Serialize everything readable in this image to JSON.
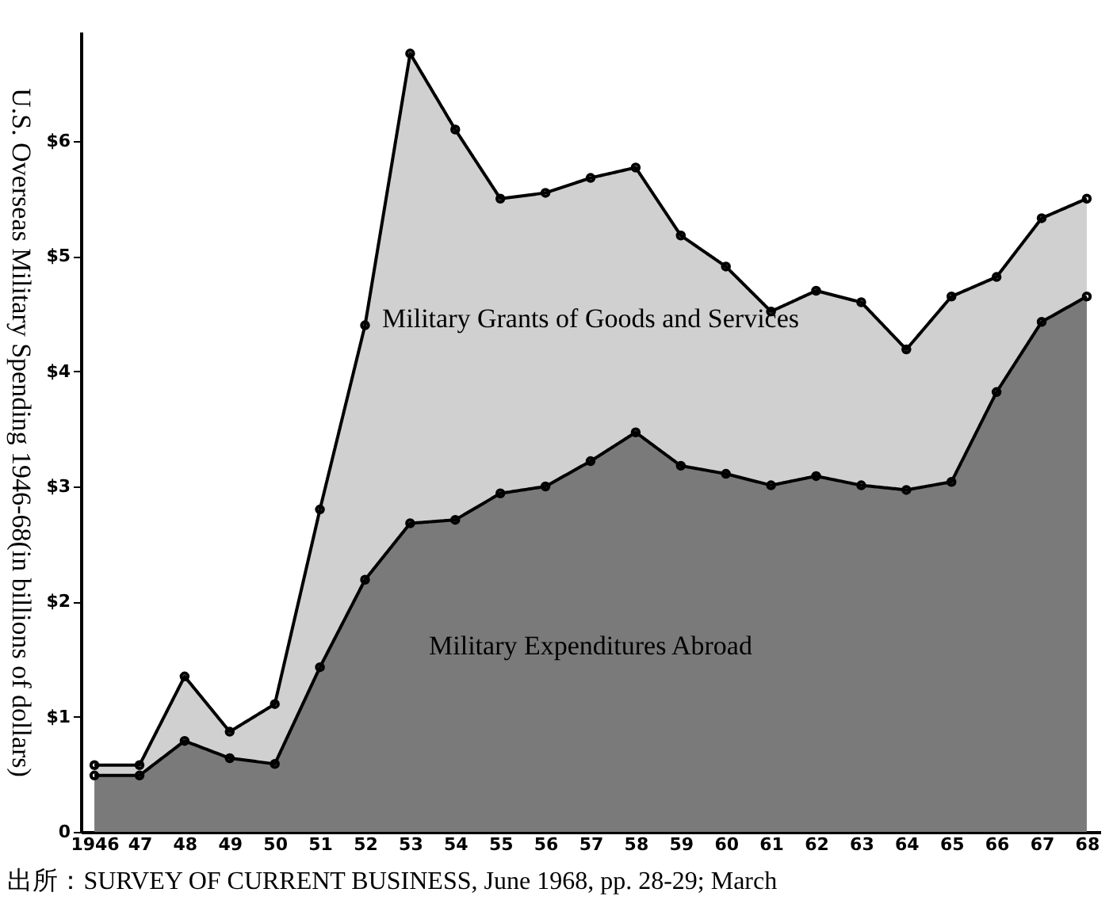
{
  "chart_data": {
    "type": "area",
    "stacked": true,
    "ylabel": "U.S. Overseas Military Spending 1946-68(in billions of dollars)",
    "categories": [
      "1946",
      "47",
      "48",
      "49",
      "50",
      "51",
      "52",
      "53",
      "54",
      "55",
      "56",
      "57",
      "58",
      "59",
      "60",
      "61",
      "62",
      "63",
      "64",
      "65",
      "66",
      "67",
      "68"
    ],
    "series": [
      {
        "name": "Military Expenditures Abroad",
        "color": "#7a7a7a",
        "values": [
          0.49,
          0.49,
          0.79,
          0.64,
          0.59,
          1.43,
          2.19,
          2.68,
          2.71,
          2.94,
          3.0,
          3.22,
          3.47,
          3.18,
          3.11,
          3.01,
          3.09,
          3.01,
          2.97,
          3.04,
          3.82,
          4.43,
          4.65
        ]
      },
      {
        "name": "Military Grants of Goods and Services",
        "color": "#d0d0d0",
        "values": [
          0.09,
          0.09,
          0.56,
          0.23,
          0.52,
          1.37,
          2.21,
          4.08,
          3.39,
          2.56,
          2.55,
          2.46,
          2.3,
          2.0,
          1.8,
          1.51,
          1.61,
          1.59,
          1.22,
          1.61,
          1.0,
          0.9,
          0.85
        ]
      }
    ],
    "ylim": [
      0,
      6.95
    ],
    "yticks": [
      0,
      {
        "value": 1,
        "label": "$1"
      },
      {
        "value": 2,
        "label": "$2"
      },
      {
        "value": 3,
        "label": "$3"
      },
      {
        "value": 4,
        "label": "$4"
      },
      {
        "value": 5,
        "label": "$5"
      },
      {
        "value": 6,
        "label": "$6"
      }
    ],
    "marker": "circle",
    "grid": false,
    "legend": false,
    "annotations": [
      "出所：SURVEY OF CURRENT BUSINESS, June 1968, pp. 28-29; March"
    ]
  }
}
